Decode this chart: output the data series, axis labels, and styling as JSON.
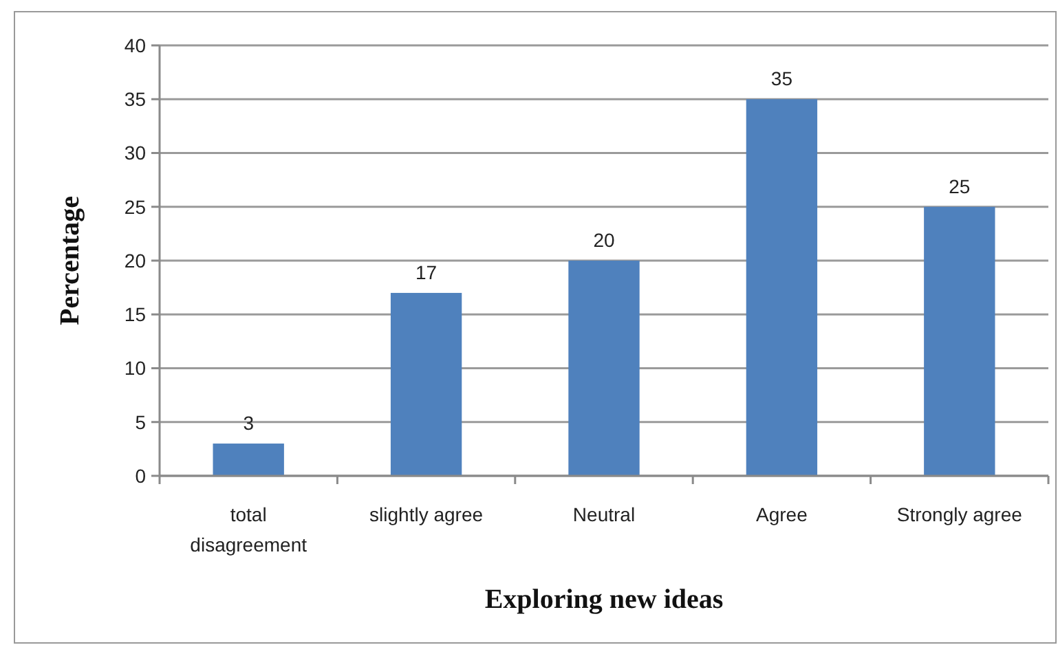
{
  "chart_data": {
    "type": "bar",
    "xlabel": "Exploring new ideas",
    "ylabel": "Percentage",
    "categories": [
      "total disagreement",
      "slightly agree",
      "Neutral",
      "Agree",
      "Strongly agree"
    ],
    "values": [
      3,
      17,
      20,
      35,
      25
    ],
    "color": "#4f81bd",
    "ylim": [
      0,
      40
    ],
    "yticks": [
      0,
      5,
      10,
      15,
      20,
      25,
      30,
      35,
      40
    ],
    "grid": "y",
    "data_labels": true
  }
}
